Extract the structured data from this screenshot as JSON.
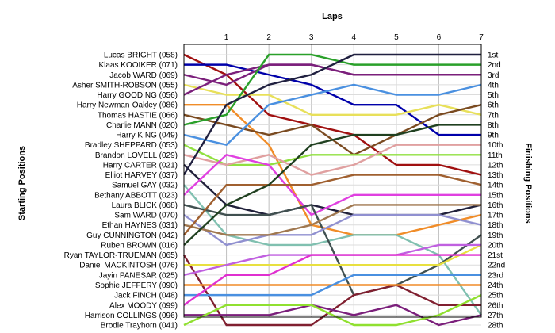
{
  "chart_data": {
    "type": "line",
    "title": "Laps",
    "ylabel_left": "Starting Positions",
    "ylabel_right": "Finishing Positions",
    "laps": [
      0,
      1,
      2,
      3,
      4,
      5,
      6,
      7
    ],
    "lap_tick_labels": [
      "1",
      "2",
      "3",
      "4",
      "5",
      "6",
      "7"
    ],
    "position_labels": [
      "1st",
      "2nd",
      "3rd",
      "4th",
      "5th",
      "6th",
      "7th",
      "8th",
      "9th",
      "10th",
      "11th",
      "12th",
      "13th",
      "14th",
      "15th",
      "16th",
      "17th",
      "18th",
      "19th",
      "20th",
      "21st",
      "22nd",
      "23rd",
      "24th",
      "25th",
      "26th",
      "27th",
      "28th"
    ],
    "series": [
      {
        "name": "Lucas BRIGHT (058)",
        "color": "#a01010",
        "positions": [
          1,
          3,
          7,
          8,
          9,
          12,
          12,
          13
        ]
      },
      {
        "name": "Klaas KOOIKER (071)",
        "color": "#0000aa",
        "positions": [
          2,
          2,
          3,
          4,
          6,
          6,
          9,
          9
        ]
      },
      {
        "name": "Jacob WARD (069)",
        "color": "#7b1f7b",
        "positions": [
          3,
          4,
          2,
          2,
          3,
          3,
          3,
          3
        ]
      },
      {
        "name": "Asher SMITH-ROBSON (055)",
        "color": "#e8e05a",
        "positions": [
          4,
          5,
          5,
          7,
          7,
          7,
          6,
          7
        ]
      },
      {
        "name": "Harry GOODING (056)",
        "color": "#7b1f7b",
        "positions": [
          5,
          3,
          2,
          2,
          3,
          3,
          3,
          3
        ]
      },
      {
        "name": "Harry Newman-Oakley (086)",
        "color": "#f08c28",
        "positions": [
          6,
          6,
          10,
          18,
          19,
          19,
          18,
          17
        ]
      },
      {
        "name": "Thomas HASTIE (066)",
        "color": "#7a4a20",
        "positions": [
          7,
          8,
          9,
          8,
          11,
          9,
          7,
          6
        ]
      },
      {
        "name": "Charlie MANN (020)",
        "color": "#2aa02a",
        "positions": [
          8,
          7,
          1,
          1,
          2,
          2,
          2,
          2
        ]
      },
      {
        "name": "Harry KING (049)",
        "color": "#4a90e0",
        "positions": [
          9,
          10,
          6,
          5,
          4,
          5,
          5,
          4
        ]
      },
      {
        "name": "Bradley SHEPPARD (053)",
        "color": "#90e040",
        "positions": [
          10,
          12,
          12,
          11,
          11,
          11,
          11,
          11
        ]
      },
      {
        "name": "Brandon LOVELL (029)",
        "color": "#e0a0a0",
        "positions": [
          11,
          12,
          11,
          13,
          12,
          10,
          10,
          10
        ]
      },
      {
        "name": "Harry CARTER (021)",
        "color": "#20203a",
        "positions": [
          12,
          16,
          17,
          16,
          17,
          17,
          17,
          16
        ]
      },
      {
        "name": "Elliot HARVEY (037)",
        "color": "#202040",
        "positions": [
          13,
          6,
          4,
          3,
          1,
          1,
          1,
          1
        ]
      },
      {
        "name": "Samuel GAY (032)",
        "color": "#80c0b0",
        "positions": [
          14,
          19,
          20,
          20,
          19,
          19,
          21,
          27
        ]
      },
      {
        "name": "Bethany ABBOTT (023)",
        "color": "#e040e0",
        "positions": [
          15,
          11,
          12,
          17,
          15,
          15,
          15,
          15
        ]
      },
      {
        "name": "Laura BLICK (068)",
        "color": "#405050",
        "positions": [
          16,
          17,
          17,
          16,
          25,
          24,
          22,
          19
        ]
      },
      {
        "name": "Sam WARD (070)",
        "color": "#9090d0",
        "positions": [
          17,
          20,
          19,
          19,
          17,
          17,
          17,
          18
        ]
      },
      {
        "name": "Ethan HAYNES (031)",
        "color": "#a07850",
        "positions": [
          18,
          19,
          19,
          18,
          16,
          16,
          16,
          16
        ]
      },
      {
        "name": "Guy CUNNINGTON (042)",
        "color": "#a06030",
        "positions": [
          19,
          14,
          14,
          14,
          13,
          13,
          13,
          14
        ]
      },
      {
        "name": "Ruben BROWN (016)",
        "color": "#204020",
        "positions": [
          20,
          16,
          14,
          10,
          9,
          9,
          8,
          8
        ]
      },
      {
        "name": "Ryan TAYLOR-TRUEMAN (065)",
        "color": "#802030",
        "positions": [
          21,
          28,
          28,
          28,
          25,
          24,
          26,
          26
        ]
      },
      {
        "name": "Daniel MACKINTOSH (076)",
        "color": "#e8e040",
        "positions": [
          22,
          22,
          22,
          22,
          22,
          22,
          22,
          20
        ]
      },
      {
        "name": "Jayin PANESAR (025)",
        "color": "#c060e0",
        "positions": [
          23,
          22,
          21,
          21,
          21,
          21,
          20,
          20
        ]
      },
      {
        "name": "Sophie JEFFERY (090)",
        "color": "#f08c28",
        "positions": [
          24,
          24,
          24,
          24,
          24,
          24,
          24,
          24
        ]
      },
      {
        "name": "Jack FINCH (048)",
        "color": "#4a90e0",
        "positions": [
          25,
          25,
          25,
          25,
          23,
          23,
          23,
          23
        ]
      },
      {
        "name": "Alex MOODY (099)",
        "color": "#e030d0",
        "positions": [
          26,
          23,
          23,
          21,
          21,
          21,
          21,
          21
        ]
      },
      {
        "name": "Harrison COLLINGS (096)",
        "color": "#7b1f7b",
        "positions": [
          27,
          27,
          27,
          26,
          27,
          26,
          28,
          27
        ]
      },
      {
        "name": "Brodie Trayhorn (041)",
        "color": "#90e030",
        "positions": [
          28,
          26,
          26,
          26,
          28,
          28,
          27,
          25
        ]
      }
    ]
  }
}
